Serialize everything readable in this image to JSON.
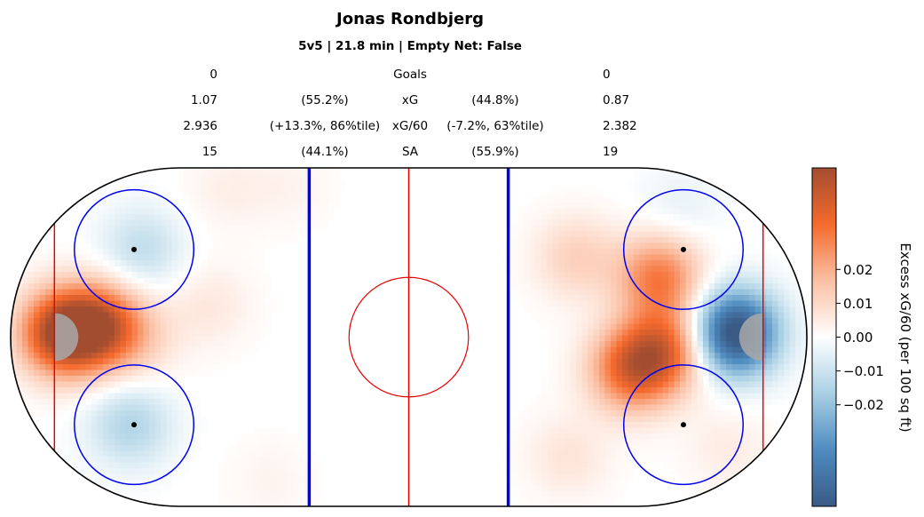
{
  "title": "Jonas Rondbjerg",
  "subtitle": "5v5 | 21.8 min | Empty Net: False",
  "stats": [
    {
      "label": "Goals",
      "left": "0",
      "left_pct": "",
      "right_pct": "",
      "right": "0"
    },
    {
      "label": "xG",
      "left": "1.07",
      "left_pct": "(55.2%)",
      "right_pct": "(44.8%)",
      "right": "0.87"
    },
    {
      "label": "xG/60",
      "left": "2.936",
      "left_pct": "(+13.3%, 86%tile)",
      "right_pct": "(-7.2%, 63%tile)",
      "right": "2.382"
    },
    {
      "label": "SA",
      "left": "15",
      "left_pct": "(44.1%)",
      "right_pct": "(55.9%)",
      "right": "19"
    }
  ],
  "colorbar": {
    "label": "Excess xG/60 (per 100 sq ft)",
    "ticks": [
      0.02,
      0.01,
      0.0,
      -0.01,
      -0.02
    ],
    "tick_labels": [
      "0.02",
      "0.01",
      "0.00",
      "−0.01",
      "−0.02"
    ],
    "range": [
      -0.05,
      0.05
    ],
    "colors": [
      "#3a5a85",
      "#4e8bc0",
      "#a9d0e4",
      "#ffffff",
      "#fbc0a4",
      "#f56a2d",
      "#a34d30"
    ]
  },
  "chart_data": {
    "type": "heatmap",
    "title": "Jonas Rondbjerg",
    "subtitle": "5v5 | 21.8 min | Empty Net: False",
    "colorbar_label": "Excess xG/60 (per 100 sq ft)",
    "x_range": [
      -100,
      100
    ],
    "y_range": [
      -42.5,
      42.5
    ],
    "hotspots": [
      {
        "x": -87,
        "y": 1,
        "value": 0.05
      },
      {
        "x": -77,
        "y": 3,
        "value": 0.035
      },
      {
        "x": -68,
        "y": -1,
        "value": 0.008
      },
      {
        "x": -67,
        "y": 22,
        "value": -0.012
      },
      {
        "x": -70,
        "y": -22,
        "value": -0.015
      },
      {
        "x": -50,
        "y": 8,
        "value": 0.006
      },
      {
        "x": -46,
        "y": 37,
        "value": 0.004
      },
      {
        "x": -30,
        "y": 38,
        "value": 0.003
      },
      {
        "x": -35,
        "y": -36,
        "value": 0.003
      },
      {
        "x": 63,
        "y": 15,
        "value": 0.03
      },
      {
        "x": 56,
        "y": -8,
        "value": 0.035
      },
      {
        "x": 65,
        "y": -3,
        "value": 0.03
      },
      {
        "x": 42,
        "y": 20,
        "value": 0.012
      },
      {
        "x": 40,
        "y": -30,
        "value": 0.007
      },
      {
        "x": 82,
        "y": 1,
        "value": -0.055
      },
      {
        "x": 68,
        "y": 32,
        "value": -0.005
      },
      {
        "x": 80,
        "y": -28,
        "value": 0.005
      }
    ]
  }
}
